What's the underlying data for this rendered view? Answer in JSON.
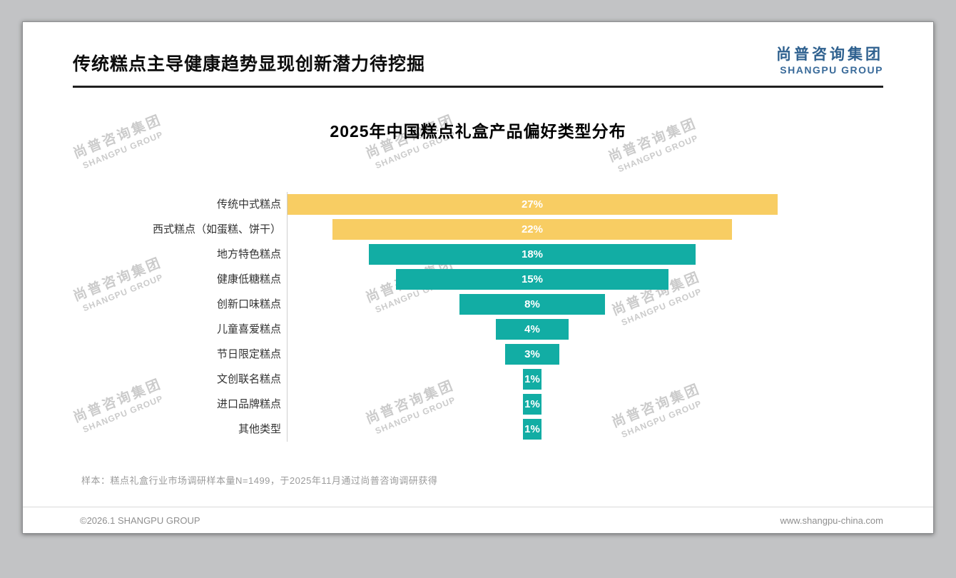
{
  "page": {
    "title": "传统糕点主导健康趋势显现创新潜力待挖掘",
    "logo": {
      "cn": "尚普咨询集团",
      "en": "SHANGPU GROUP"
    },
    "note": "样本：糕点礼盒行业市场调研样本量N=1499，于2025年11月通过尚普咨询调研获得",
    "copyright": "©2026.1 SHANGPU GROUP",
    "website": "www.shangpu-china.com",
    "watermark": {
      "cn": "尚普咨询集团",
      "en": "SHANGPU GROUP"
    }
  },
  "chart_data": {
    "type": "bar",
    "variant": "horizontal-centered-funnel",
    "title": "2025年中国糕点礼盒产品偏好类型分布",
    "categories": [
      "传统中式糕点",
      "西式糕点（如蛋糕、饼干）",
      "地方特色糕点",
      "健康低糖糕点",
      "创新口味糕点",
      "儿童喜爱糕点",
      "节日限定糕点",
      "文创联名糕点",
      "进口品牌糕点",
      "其他类型"
    ],
    "values": [
      27,
      22,
      18,
      15,
      8,
      4,
      3,
      1,
      1,
      1
    ],
    "labels": [
      "27%",
      "22%",
      "18%",
      "15%",
      "8%",
      "4%",
      "3%",
      "1%",
      "1%",
      "1%"
    ],
    "bar_colors": [
      "#f8cd63",
      "#f8cd63",
      "#12ada4",
      "#12ada4",
      "#12ada4",
      "#12ada4",
      "#12ada4",
      "#12ada4",
      "#12ada4",
      "#12ada4"
    ],
    "value_suffix": "%",
    "xlim": [
      0,
      27
    ],
    "legend": "none",
    "grid": "off",
    "accent_colors": {
      "highlight": "#f8cd63",
      "default": "#12ada4"
    }
  }
}
